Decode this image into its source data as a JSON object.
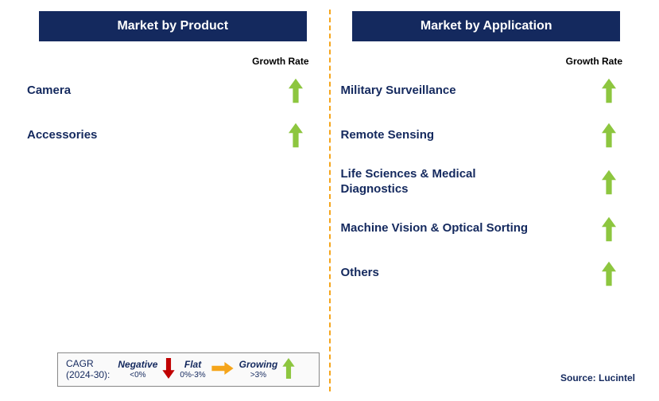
{
  "colors": {
    "header_bg": "#14295e",
    "header_text": "#ffffff",
    "label_text": "#14295e",
    "growth_arrow": "#8dc63f",
    "divider": "#f5a51b",
    "neg_arrow": "#c00000",
    "flat_arrow": "#f5a51b",
    "legend_border": "#888888",
    "legend_bg": "#fafafa"
  },
  "left": {
    "title": "Market by Product",
    "growth_label": "Growth Rate",
    "items": [
      {
        "label": "Camera",
        "trend": "growing"
      },
      {
        "label": "Accessories",
        "trend": "growing"
      }
    ]
  },
  "right": {
    "title": "Market by Application",
    "growth_label": "Growth Rate",
    "items": [
      {
        "label": "Military Surveillance",
        "trend": "growing"
      },
      {
        "label": "Remote Sensing",
        "trend": "growing"
      },
      {
        "label": "Life Sciences & Medical Diagnostics",
        "trend": "growing"
      },
      {
        "label": "Machine Vision & Optical Sorting",
        "trend": "growing"
      },
      {
        "label": "Others",
        "trend": "growing"
      }
    ]
  },
  "legend": {
    "cagr_line1": "CAGR",
    "cagr_line2": "(2024-30):",
    "negative": "Negative",
    "negative_sub": "<0%",
    "flat": "Flat",
    "flat_sub": "0%-3%",
    "growing": "Growing",
    "growing_sub": ">3%"
  },
  "source": "Source: Lucintel"
}
